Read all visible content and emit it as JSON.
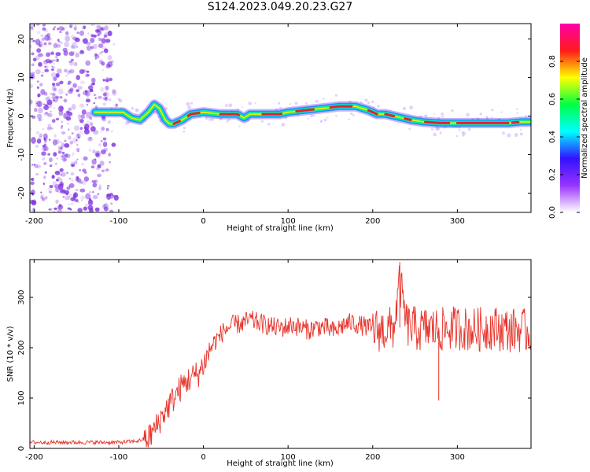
{
  "page": {
    "title": "S124.2023.049.20.23.G27"
  },
  "colors": {
    "snr_line": "#e8332a",
    "ridge_core": "#e8202a",
    "noise": "#7a2be0",
    "colorbar_stops": [
      "#ffffff",
      "#9933ff",
      "#3311ff",
      "#00ffff",
      "#00ff44",
      "#ffff00",
      "#ff1a1a",
      "#ff00aa"
    ]
  },
  "chart_data": [
    {
      "type": "heatmap",
      "title": "S124.2023.049.20.23.G27",
      "xlabel": "Height of straight line (km)",
      "ylabel": "Frequency (Hz)",
      "xlim": [
        -205,
        387
      ],
      "ylim": [
        -25,
        24
      ],
      "x_ticks": [
        -200,
        -100,
        0,
        100,
        200,
        300
      ],
      "x_tick_labels": [
        "-200",
        "-100",
        "0",
        "100",
        "200",
        "300"
      ],
      "y_ticks": [
        -20,
        -10,
        0,
        10,
        20
      ],
      "y_tick_labels": [
        "-20",
        "-10",
        "0",
        "10",
        "20"
      ],
      "ridge_frequency_trace": {
        "x": [
          -128,
          -110,
          -95,
          -85,
          -75,
          -65,
          -58,
          -52,
          -45,
          -40,
          -35,
          -25,
          -15,
          0,
          20,
          40,
          48,
          55,
          70,
          90,
          100,
          120,
          140,
          160,
          180,
          195,
          205,
          215,
          225,
          235,
          245,
          260,
          280,
          300,
          320,
          340,
          360,
          375,
          387
        ],
        "y": [
          1,
          1,
          1,
          -0.5,
          -1,
          1,
          3,
          2,
          -1,
          -2,
          -2,
          -1,
          0.5,
          1,
          0.5,
          0.5,
          -0.5,
          0.5,
          0.5,
          0.5,
          1,
          1.5,
          2,
          2.5,
          2.5,
          1.5,
          0.5,
          0.5,
          0,
          -0.5,
          -1,
          -1.5,
          -1.8,
          -1.8,
          -1.8,
          -1.8,
          -1.8,
          -1.5,
          -1.5
        ]
      },
      "noise_region_x": [
        -205,
        -100
      ],
      "colorbar": {
        "label": "Normalized spectral amplitude",
        "range": [
          0,
          1
        ],
        "ticks": [
          0.0,
          0.2,
          0.4,
          0.6,
          0.8
        ],
        "tick_labels": [
          "0.0",
          "0.2",
          "0.4",
          "0.6",
          "0.8"
        ]
      }
    },
    {
      "type": "line",
      "xlabel": "Height of straight line (km)",
      "ylabel": "SNR (10 * v/v)",
      "xlim": [
        -205,
        387
      ],
      "ylim": [
        0,
        375
      ],
      "x_ticks": [
        -200,
        -100,
        0,
        100,
        200,
        300
      ],
      "x_tick_labels": [
        "-200",
        "-100",
        "0",
        "100",
        "200",
        "300"
      ],
      "y_ticks": [
        0,
        100,
        200,
        300
      ],
      "y_tick_labels": [
        "0",
        "100",
        "200",
        "300"
      ],
      "series": [
        {
          "x": [
            -205,
            -150,
            -100,
            -80,
            -65,
            -55,
            -45,
            -35,
            -25,
            -15,
            -5,
            5,
            10,
            15,
            25,
            35,
            45,
            55,
            65,
            75,
            85,
            95,
            105,
            115,
            125,
            135,
            145,
            155,
            165,
            175,
            185,
            195,
            205,
            215,
            225,
            232,
            240,
            255,
            265,
            280,
            300,
            320,
            340,
            360,
            375,
            387
          ],
          "y": [
            12,
            12,
            12,
            14,
            20,
            45,
            75,
            100,
            125,
            140,
            150,
            185,
            205,
            215,
            235,
            245,
            248,
            255,
            250,
            245,
            240,
            240,
            245,
            240,
            235,
            242,
            240,
            232,
            245,
            250,
            245,
            240,
            235,
            235,
            240,
            330,
            245,
            235,
            238,
            235,
            240,
            235,
            240,
            235,
            235,
            230
          ],
          "annotations": [
            {
              "x": 232,
              "y": 370,
              "label": ""
            },
            {
              "x": 278,
              "y": 95,
              "label": ""
            }
          ]
        }
      ]
    }
  ]
}
